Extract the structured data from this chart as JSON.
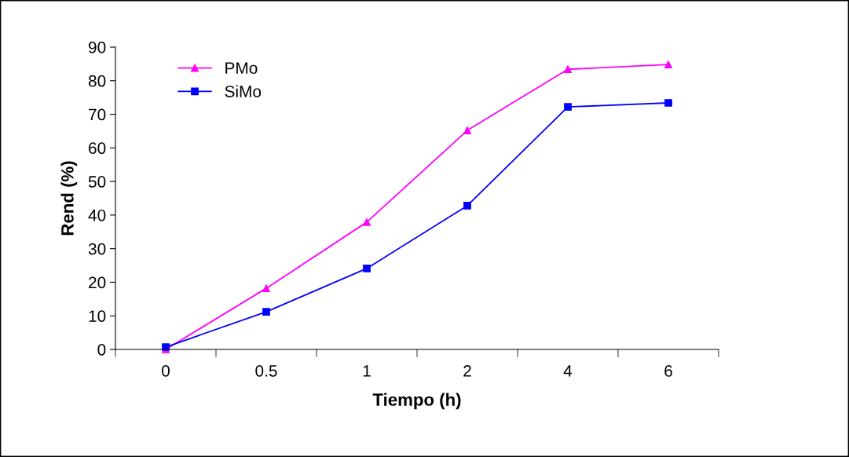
{
  "chart_data": {
    "type": "line",
    "xlabel": "Tiempo (h)",
    "ylabel": "Rend (%)",
    "categories": [
      "0",
      "0.5",
      "1",
      "2",
      "4",
      "6"
    ],
    "series": [
      {
        "name": "PMo",
        "color": "#ff00ff",
        "marker": "triangle",
        "values": [
          0,
          18.2,
          37.9,
          65.2,
          83.4,
          84.8
        ]
      },
      {
        "name": "SiMo",
        "color": "#0000ff",
        "marker": "square",
        "values": [
          0.7,
          11.2,
          24.1,
          42.8,
          72.2,
          73.4
        ]
      }
    ],
    "ylim": [
      0,
      90
    ],
    "yticks": [
      0,
      10,
      20,
      30,
      40,
      50,
      60,
      70,
      80,
      90
    ],
    "grid": false,
    "legend": "top left"
  }
}
